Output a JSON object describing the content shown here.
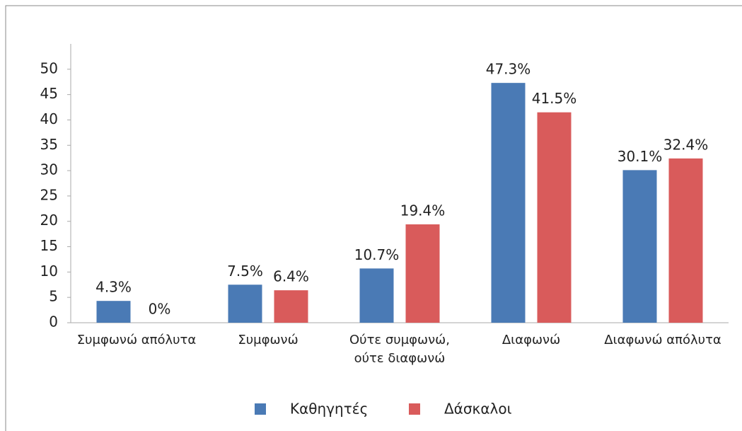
{
  "chart_data": {
    "type": "bar",
    "categories": [
      "Συμφωνώ απόλυτα",
      "Συμφωνώ",
      "Ούτε συμφωνώ, ούτε διαφωνώ",
      "Διαφωνώ",
      "Διαφωνώ απόλυτα"
    ],
    "series": [
      {
        "name": "Καθηγητές",
        "color": "#4a7ab5",
        "values": [
          4.3,
          7.5,
          10.7,
          47.3,
          30.1
        ],
        "value_labels": [
          "4.3%",
          "7.5%",
          "10.7%",
          "47.3%",
          "30.1%"
        ]
      },
      {
        "name": "Δάσκαλοι",
        "color": "#d95b5b",
        "values": [
          0,
          6.4,
          19.4,
          41.5,
          32.4
        ],
        "value_labels": [
          "0%",
          "6.4%",
          "19.4%",
          "41.5%",
          "32.4%"
        ]
      }
    ],
    "ylim": [
      0,
      55
    ],
    "yticks": [
      0,
      5,
      10,
      15,
      20,
      25,
      30,
      35,
      40,
      45,
      50
    ],
    "grid": false,
    "legend": "bottom"
  }
}
